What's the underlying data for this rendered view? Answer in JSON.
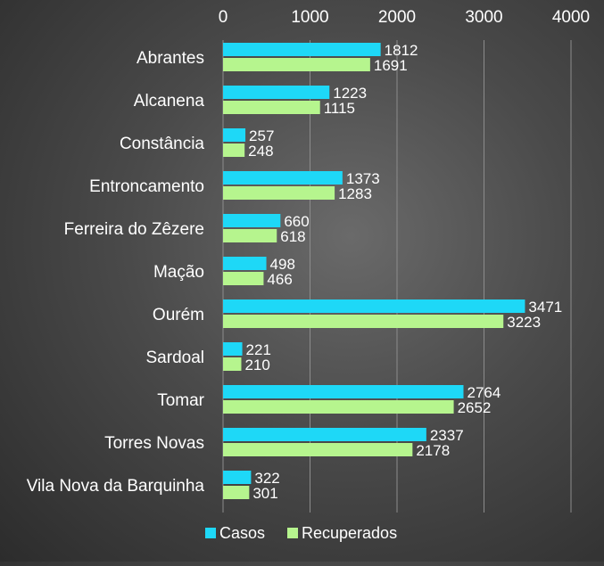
{
  "chart_data": {
    "type": "bar",
    "orientation": "horizontal",
    "categories": [
      "Abrantes",
      "Alcanena",
      "Constância",
      "Entroncamento",
      "Ferreira do Zêzere",
      "Mação",
      "Ourém",
      "Sardoal",
      "Tomar",
      "Torres Novas",
      "Vila Nova da Barquinha"
    ],
    "series": [
      {
        "name": "Casos",
        "color": "#1ed8f7",
        "values": [
          1812,
          1223,
          257,
          1373,
          660,
          498,
          3471,
          221,
          2764,
          2337,
          322
        ]
      },
      {
        "name": "Recuperados",
        "color": "#b6f58e",
        "values": [
          1691,
          1115,
          248,
          1283,
          618,
          466,
          3223,
          210,
          2652,
          2178,
          301
        ]
      }
    ],
    "xlim": [
      0,
      4000
    ],
    "xticks": [
      0,
      1000,
      2000,
      3000,
      4000
    ],
    "x_axis_position": "top",
    "grid": true,
    "legend": "bottom",
    "title": "",
    "xlabel": "",
    "ylabel": ""
  }
}
